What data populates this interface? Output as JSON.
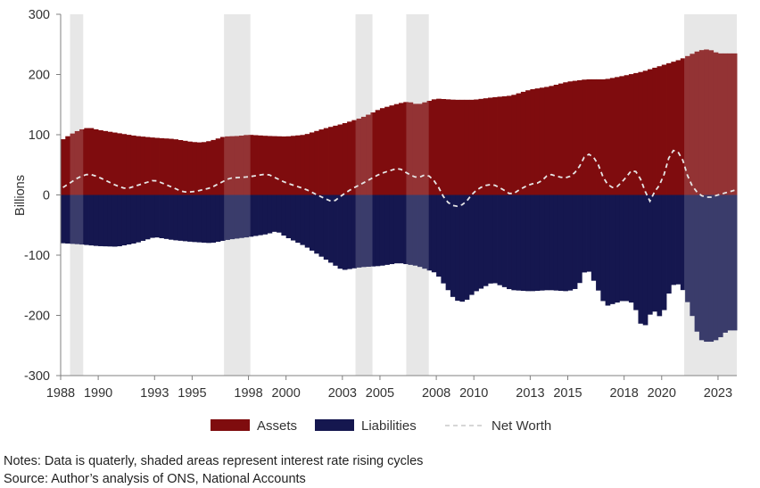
{
  "chart_data": {
    "type": "bar",
    "ylabel": "Billions",
    "ylim": [
      -300,
      300
    ],
    "y_ticks": [
      "300",
      "200",
      "100",
      "0",
      "-100",
      "-200",
      "-300"
    ],
    "x_tick_labels": [
      "1988",
      "1990",
      "1993",
      "1995",
      "1998",
      "2000",
      "2003",
      "2005",
      "2008",
      "2010",
      "2013",
      "2015",
      "2018",
      "2020",
      "2023"
    ],
    "x_tick_years": [
      1988,
      1990,
      1993,
      1995,
      1998,
      2000,
      2003,
      2005,
      2008,
      2010,
      2013,
      2015,
      2018,
      2020,
      2023
    ],
    "x_range": [
      1988,
      2024
    ],
    "grid": false,
    "legend_placement": "bottom-center",
    "colors": {
      "assets": "#7f0c0e",
      "liabilities": "#15174f",
      "net_worth": "#e6e6e6",
      "shading": "#e3e3e3"
    },
    "shaded_periods": [
      [
        1988.5,
        1989.2
      ],
      [
        1996.7,
        1998.1
      ],
      [
        2003.7,
        2004.6
      ],
      [
        2006.4,
        2007.6
      ],
      [
        2021.2,
        2024.0
      ]
    ],
    "anchors": {
      "assets": [
        [
          1988.0,
          90
        ],
        [
          1988.5,
          100
        ],
        [
          1989.0,
          108
        ],
        [
          1989.5,
          112
        ],
        [
          1990.0,
          108
        ],
        [
          1991.0,
          103
        ],
        [
          1992.0,
          98
        ],
        [
          1993.0,
          95
        ],
        [
          1994.0,
          93
        ],
        [
          1995.0,
          88
        ],
        [
          1995.5,
          87
        ],
        [
          1996.0,
          90
        ],
        [
          1996.7,
          97
        ],
        [
          1997.5,
          98
        ],
        [
          1998.0,
          100
        ],
        [
          1999.0,
          98
        ],
        [
          2000.0,
          97
        ],
        [
          2001.0,
          100
        ],
        [
          2001.5,
          105
        ],
        [
          2002.0,
          110
        ],
        [
          2003.0,
          118
        ],
        [
          2004.0,
          128
        ],
        [
          2004.5,
          135
        ],
        [
          2005.0,
          143
        ],
        [
          2006.0,
          152
        ],
        [
          2006.5,
          155
        ],
        [
          2007.0,
          150
        ],
        [
          2007.5,
          155
        ],
        [
          2008.0,
          160
        ],
        [
          2009.0,
          158
        ],
        [
          2010.0,
          158
        ],
        [
          2011.0,
          162
        ],
        [
          2012.0,
          165
        ],
        [
          2013.0,
          175
        ],
        [
          2014.0,
          180
        ],
        [
          2015.0,
          188
        ],
        [
          2016.0,
          192
        ],
        [
          2017.0,
          192
        ],
        [
          2018.0,
          198
        ],
        [
          2019.0,
          205
        ],
        [
          2020.0,
          215
        ],
        [
          2021.0,
          225
        ],
        [
          2022.0,
          240
        ],
        [
          2022.5,
          242
        ],
        [
          2023.0,
          235
        ],
        [
          2023.9,
          235
        ]
      ],
      "liabilities": [
        [
          1988.0,
          -80
        ],
        [
          1989.0,
          -82
        ],
        [
          1990.0,
          -85
        ],
        [
          1991.0,
          -86
        ],
        [
          1992.0,
          -80
        ],
        [
          1993.0,
          -70
        ],
        [
          1994.0,
          -75
        ],
        [
          1995.0,
          -78
        ],
        [
          1996.0,
          -80
        ],
        [
          1997.0,
          -74
        ],
        [
          1998.0,
          -70
        ],
        [
          1999.0,
          -65
        ],
        [
          1999.5,
          -60
        ],
        [
          2000.0,
          -70
        ],
        [
          2001.0,
          -85
        ],
        [
          2002.0,
          -105
        ],
        [
          2003.0,
          -125
        ],
        [
          2004.0,
          -120
        ],
        [
          2005.0,
          -118
        ],
        [
          2006.0,
          -113
        ],
        [
          2007.0,
          -118
        ],
        [
          2008.0,
          -130
        ],
        [
          2009.0,
          -175
        ],
        [
          2009.5,
          -178
        ],
        [
          2010.0,
          -162
        ],
        [
          2011.0,
          -145
        ],
        [
          2012.0,
          -158
        ],
        [
          2013.0,
          -160
        ],
        [
          2014.0,
          -158
        ],
        [
          2015.0,
          -160
        ],
        [
          2015.5,
          -155
        ],
        [
          2016.0,
          -120
        ],
        [
          2016.5,
          -150
        ],
        [
          2017.0,
          -185
        ],
        [
          2018.0,
          -175
        ],
        [
          2018.5,
          -180
        ],
        [
          2019.0,
          -225
        ],
        [
          2019.5,
          -190
        ],
        [
          2020.0,
          -205
        ],
        [
          2020.5,
          -150
        ],
        [
          2021.0,
          -148
        ],
        [
          2021.5,
          -188
        ],
        [
          2022.0,
          -240
        ],
        [
          2022.5,
          -245
        ],
        [
          2023.0,
          -240
        ],
        [
          2023.5,
          -225
        ],
        [
          2023.9,
          -225
        ]
      ],
      "net_worth": [
        [
          1988.0,
          10
        ],
        [
          1988.5,
          20
        ],
        [
          1989.0,
          30
        ],
        [
          1989.5,
          35
        ],
        [
          1990.0,
          30
        ],
        [
          1991.0,
          15
        ],
        [
          1991.5,
          10
        ],
        [
          1992.0,
          15
        ],
        [
          1993.0,
          25
        ],
        [
          1994.0,
          12
        ],
        [
          1994.5,
          5
        ],
        [
          1995.0,
          5
        ],
        [
          1995.5,
          8
        ],
        [
          1996.0,
          12
        ],
        [
          1997.0,
          28
        ],
        [
          1998.0,
          30
        ],
        [
          1999.0,
          35
        ],
        [
          2000.0,
          20
        ],
        [
          2001.0,
          10
        ],
        [
          2002.0,
          -5
        ],
        [
          2002.5,
          -12
        ],
        [
          2003.0,
          0
        ],
        [
          2003.5,
          10
        ],
        [
          2004.0,
          18
        ],
        [
          2005.0,
          35
        ],
        [
          2006.0,
          45
        ],
        [
          2006.5,
          35
        ],
        [
          2007.0,
          28
        ],
        [
          2007.5,
          35
        ],
        [
          2008.0,
          20
        ],
        [
          2008.5,
          -10
        ],
        [
          2009.0,
          -20
        ],
        [
          2009.5,
          -15
        ],
        [
          2010.0,
          5
        ],
        [
          2010.5,
          15
        ],
        [
          2011.0,
          18
        ],
        [
          2011.5,
          10
        ],
        [
          2012.0,
          0
        ],
        [
          2012.5,
          10
        ],
        [
          2013.0,
          18
        ],
        [
          2013.5,
          20
        ],
        [
          2014.0,
          35
        ],
        [
          2014.5,
          30
        ],
        [
          2015.0,
          28
        ],
        [
          2015.5,
          40
        ],
        [
          2016.0,
          70
        ],
        [
          2016.5,
          60
        ],
        [
          2017.0,
          20
        ],
        [
          2017.5,
          10
        ],
        [
          2018.0,
          25
        ],
        [
          2018.5,
          45
        ],
        [
          2019.0,
          20
        ],
        [
          2019.3,
          -15
        ],
        [
          2019.7,
          10
        ],
        [
          2020.0,
          20
        ],
        [
          2020.5,
          75
        ],
        [
          2021.0,
          70
        ],
        [
          2021.5,
          20
        ],
        [
          2022.0,
          0
        ],
        [
          2022.5,
          -5
        ],
        [
          2023.0,
          0
        ],
        [
          2023.9,
          8
        ]
      ]
    },
    "series": [
      {
        "name": "Assets",
        "kind": "bar",
        "color": "#7f0c0e"
      },
      {
        "name": "Liabilities",
        "kind": "bar",
        "color": "#15174f"
      },
      {
        "name": "Net Worth",
        "kind": "line-dashed",
        "color": "#e6e6e6"
      }
    ]
  },
  "notes": {
    "line1": "Notes: Data is quaterly, shaded areas represent interest rate rising cycles",
    "line2": "Source: Author’s analysis of ONS, National Accounts"
  }
}
